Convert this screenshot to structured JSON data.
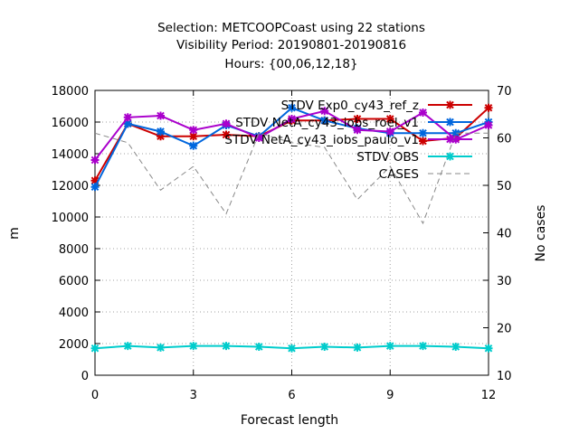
{
  "chart_data": {
    "type": "line",
    "title_lines": [
      "Selection: METCOOPCoast using    22 stations",
      "Visibility   Period: 20190801-20190816",
      "Hours: {00,06,12,18}"
    ],
    "xlabel": "Forecast length",
    "ylabel": "m",
    "y2label": "No cases",
    "xlim": [
      0,
      12
    ],
    "ylim": [
      0,
      18000
    ],
    "y2lim": [
      10,
      70
    ],
    "x_ticks": [
      0,
      3,
      6,
      9,
      12
    ],
    "y_ticks": [
      0,
      2000,
      4000,
      6000,
      8000,
      10000,
      12000,
      14000,
      16000,
      18000
    ],
    "y2_ticks": [
      10,
      20,
      30,
      40,
      50,
      60,
      70
    ],
    "grid": true,
    "legend_position": "top-right",
    "x": [
      0,
      1,
      2,
      3,
      4,
      5,
      6,
      7,
      8,
      9,
      10,
      11,
      12
    ],
    "series": [
      {
        "name": "STDV Exp0_cy43_ref_z",
        "color": "#cc0000",
        "axis": "left",
        "marker": "star",
        "values": [
          12300,
          15900,
          15100,
          15100,
          15200,
          15100,
          16100,
          16100,
          16200,
          16200,
          14800,
          15000,
          16900
        ]
      },
      {
        "name": "STDV NetA_cy43_iobs_roel_v1",
        "color": "#0066dd",
        "axis": "left",
        "marker": "star",
        "values": [
          11900,
          15900,
          15400,
          14500,
          15800,
          15100,
          16900,
          16100,
          15600,
          15300,
          15300,
          15300,
          16000
        ]
      },
      {
        "name": "STDV NetA_cy43_iobs_paulo_v1",
        "color": "#aa00cc",
        "axis": "left",
        "marker": "star",
        "values": [
          13600,
          16300,
          16400,
          15500,
          15900,
          15000,
          16200,
          16700,
          15500,
          15400,
          16600,
          14900,
          15800
        ]
      },
      {
        "name": "STDV OBS",
        "color": "#00cccc",
        "axis": "left",
        "marker": "star",
        "values": [
          1700,
          1850,
          1750,
          1850,
          1850,
          1800,
          1700,
          1800,
          1750,
          1850,
          1850,
          1800,
          1700
        ]
      },
      {
        "name": "CASES",
        "color": "#888888",
        "axis": "right",
        "marker": "none",
        "dashed": true,
        "values": [
          61,
          59,
          49,
          54,
          44,
          61,
          59,
          58,
          47,
          54,
          42,
          61,
          61
        ]
      }
    ]
  }
}
